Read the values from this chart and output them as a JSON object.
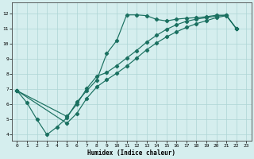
{
  "xlabel": "Humidex (Indice chaleur)",
  "xlim": [
    -0.5,
    23.5
  ],
  "ylim": [
    3.6,
    12.7
  ],
  "xticks": [
    0,
    1,
    2,
    3,
    4,
    5,
    6,
    7,
    8,
    9,
    10,
    11,
    12,
    13,
    14,
    15,
    16,
    17,
    18,
    19,
    20,
    21,
    22,
    23
  ],
  "yticks": [
    4,
    5,
    6,
    7,
    8,
    9,
    10,
    11,
    12
  ],
  "line_color": "#1a7060",
  "bg_color": "#d5eeee",
  "grid_color": "#aed5d5",
  "line1_x": [
    0,
    1,
    2,
    3,
    4,
    5,
    6,
    7,
    8,
    9,
    10,
    11,
    12,
    13,
    14,
    15,
    16,
    17,
    18,
    19,
    20,
    21,
    22
  ],
  "line1_y": [
    6.9,
    6.1,
    5.0,
    4.0,
    4.5,
    5.1,
    6.15,
    6.9,
    7.6,
    9.35,
    10.2,
    11.9,
    11.9,
    11.85,
    11.6,
    11.5,
    11.62,
    11.68,
    11.72,
    11.78,
    11.88,
    11.88,
    11.0
  ],
  "line2_x": [
    0,
    5,
    6,
    7,
    8,
    9,
    10,
    11,
    12,
    13,
    14,
    15,
    16,
    17,
    18,
    19,
    20,
    21,
    22
  ],
  "line2_y": [
    6.9,
    5.2,
    6.0,
    7.05,
    7.85,
    8.1,
    8.55,
    9.05,
    9.55,
    10.1,
    10.55,
    10.95,
    11.25,
    11.48,
    11.62,
    11.72,
    11.82,
    11.88,
    11.0
  ],
  "line3_x": [
    0,
    5,
    6,
    7,
    8,
    9,
    10,
    11,
    12,
    13,
    14,
    15,
    16,
    17,
    18,
    19,
    20,
    21,
    22
  ],
  "line3_y": [
    6.9,
    4.75,
    5.4,
    6.4,
    7.15,
    7.62,
    8.05,
    8.52,
    9.05,
    9.6,
    10.05,
    10.45,
    10.78,
    11.08,
    11.32,
    11.52,
    11.72,
    11.85,
    11.0
  ]
}
